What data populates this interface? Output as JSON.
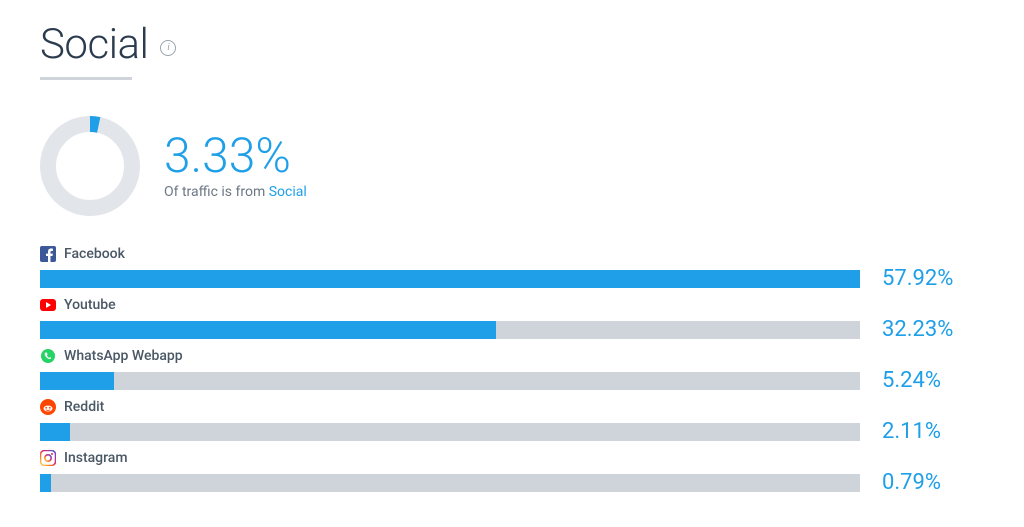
{
  "title": "Social",
  "donut": {
    "percent": 3.33,
    "track_color": "#e2e5e9",
    "fill_color": "#1e9fe8",
    "thickness": 16,
    "radius": 42
  },
  "big_percent_text": "3.33%",
  "subtext_prefix": "Of traffic is from ",
  "subtext_link": "Social",
  "bar_colors": {
    "track": "#cfd4da",
    "fill": "#1e9fe8"
  },
  "percent_color": "#1e9fe8",
  "max_bar_percent": 57.92,
  "rows": [
    {
      "name": "Facebook",
      "percent": 57.92,
      "percent_text": "57.92%",
      "icon": "facebook",
      "icon_color": "#3b5998"
    },
    {
      "name": "Youtube",
      "percent": 32.23,
      "percent_text": "32.23%",
      "icon": "youtube",
      "icon_color": "#ff0000"
    },
    {
      "name": "WhatsApp Webapp",
      "percent": 5.24,
      "percent_text": "5.24%",
      "icon": "whatsapp",
      "icon_color": "#25d366"
    },
    {
      "name": "Reddit",
      "percent": 2.11,
      "percent_text": "2.11%",
      "icon": "reddit",
      "icon_color": "#ff4500"
    },
    {
      "name": "Instagram",
      "percent": 0.79,
      "percent_text": "0.79%",
      "icon": "instagram",
      "icon_color": "#c13584"
    }
  ]
}
